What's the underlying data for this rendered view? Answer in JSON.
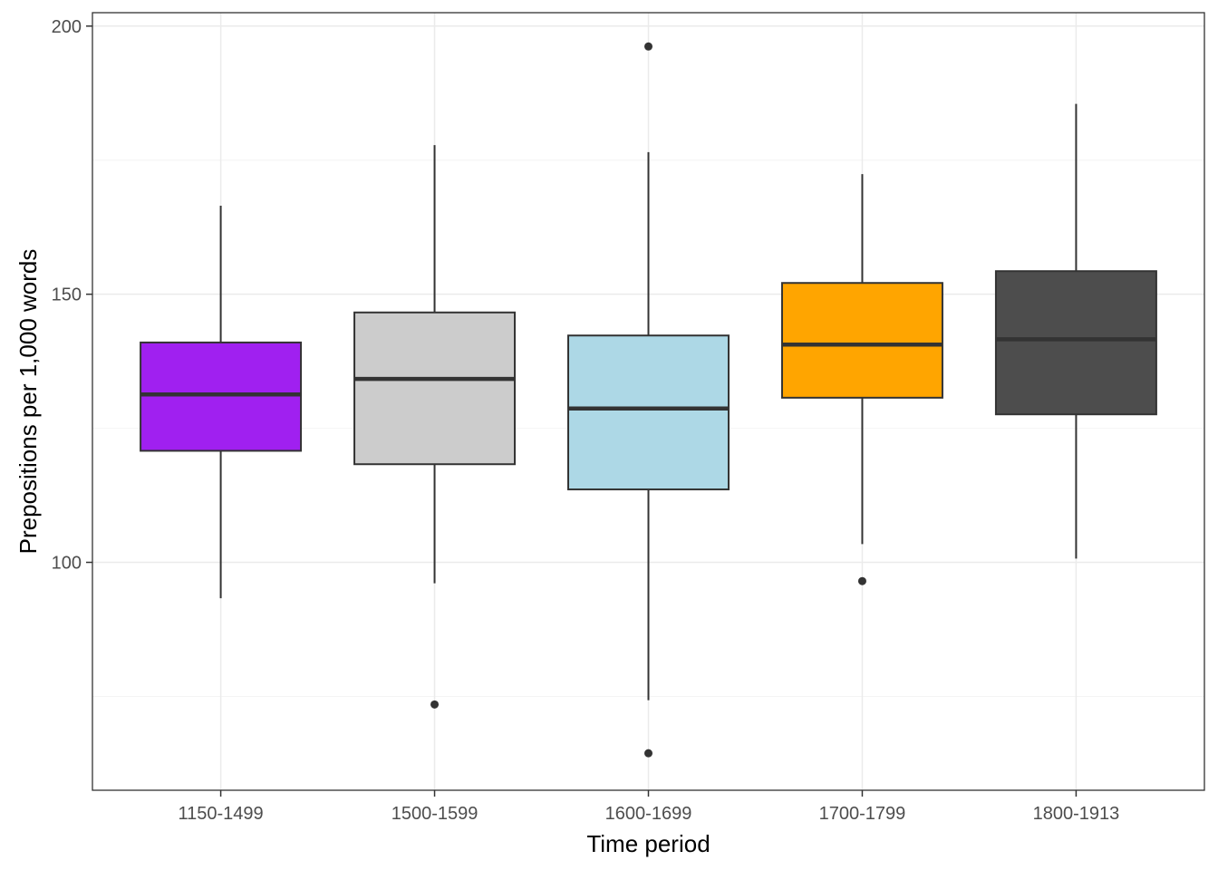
{
  "chart_data": {
    "type": "box",
    "title": "",
    "xlabel": "Time period",
    "ylabel": "Prepositions per 1,000 words",
    "ylim": [
      57.5,
      202.5
    ],
    "yticks": [
      100,
      150,
      200
    ],
    "grid": true,
    "colors": {
      "panel_border": "#333333",
      "grid_major": "#ebebeb",
      "grid_minor": "#f4f4f4",
      "box_stroke": "#333333"
    },
    "boxes": [
      {
        "category": "1150-1499",
        "fill": "#a020f0",
        "whisker_low": 93.3,
        "q1": 120.8,
        "median": 131.3,
        "q3": 141.0,
        "whisker_high": 166.5,
        "outliers": []
      },
      {
        "category": "1500-1599",
        "fill": "#cccccc",
        "whisker_low": 96.1,
        "q1": 118.3,
        "median": 134.2,
        "q3": 146.6,
        "whisker_high": 177.8,
        "outliers": [
          73.5
        ]
      },
      {
        "category": "1600-1699",
        "fill": "#add8e6",
        "whisker_low": 74.3,
        "q1": 113.6,
        "median": 128.7,
        "q3": 142.3,
        "whisker_high": 176.5,
        "outliers": [
          196.2,
          64.4
        ]
      },
      {
        "category": "1700-1799",
        "fill": "#ffa500",
        "whisker_low": 103.4,
        "q1": 130.7,
        "median": 140.6,
        "q3": 152.1,
        "whisker_high": 172.4,
        "outliers": [
          96.5
        ]
      },
      {
        "category": "1800-1913",
        "fill": "#4d4d4d",
        "whisker_low": 100.7,
        "q1": 127.6,
        "median": 141.6,
        "q3": 154.3,
        "whisker_high": 185.5,
        "outliers": []
      }
    ]
  }
}
